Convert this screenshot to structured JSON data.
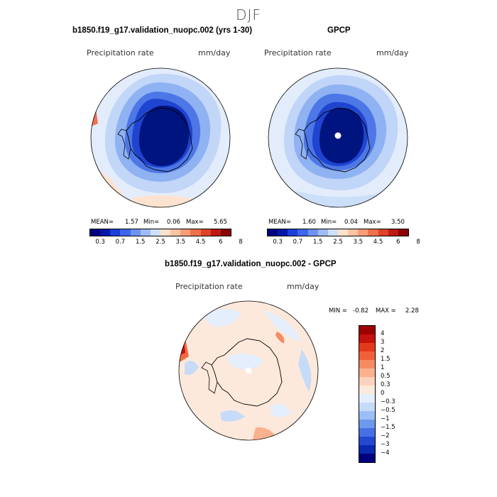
{
  "season_title": "DJF",
  "panel1": {
    "title": "b1850.f19_g17.validation_nuopc.002 (yrs 1-30)",
    "variable": "Precipitation rate",
    "units": "mm/day",
    "mean_label": "MEAN=",
    "mean": "1.57",
    "min_label": "Min=",
    "min": "0.06",
    "max_label": "Max=",
    "max": "5.65"
  },
  "panel2": {
    "title": "GPCP",
    "variable": "Precipitation rate",
    "units": "mm/day",
    "mean_label": "MEAN=",
    "mean": "1.60",
    "min_label": "Min=",
    "min": "0.04",
    "max_label": "Max=",
    "max": "3.50"
  },
  "panel3": {
    "title": "b1850.f19_g17.validation_nuopc.002 - GPCP",
    "variable": "Precipitation rate",
    "units": "mm/day",
    "min_label": "MIN =",
    "min": "-0.82",
    "max_label": "MAX =",
    "max": "2.28"
  },
  "colorbar_abs": {
    "colors": [
      "#00007f",
      "#0018a8",
      "#1d3ed8",
      "#3d66ee",
      "#6d93f2",
      "#9dbcf6",
      "#cfe0fb",
      "#fde1cc",
      "#fcc3a3",
      "#f89c76",
      "#f1704c",
      "#df4128",
      "#bd1a12",
      "#8c0000"
    ],
    "ticks": [
      "0.3",
      "0.7",
      "1.5",
      "2.5",
      "3.5",
      "4.5",
      "6",
      "8"
    ]
  },
  "colorbar_diff": {
    "colors": [
      "#9c0000",
      "#c4120c",
      "#e23a1a",
      "#f2603a",
      "#f78b62",
      "#fbb08e",
      "#fdd3bd",
      "#fde9dc",
      "#e4eefc",
      "#c6dbf8",
      "#9bbff4",
      "#6f98ef",
      "#4670e4",
      "#2349d2",
      "#0a28b0",
      "#00007f"
    ],
    "ticks": [
      "4",
      "3",
      "2",
      "1.5",
      "1",
      "0.5",
      "0.3",
      "0",
      "−0.3",
      "−0.5",
      "−1",
      "−1.5",
      "−2",
      "−3",
      "−4"
    ]
  }
}
